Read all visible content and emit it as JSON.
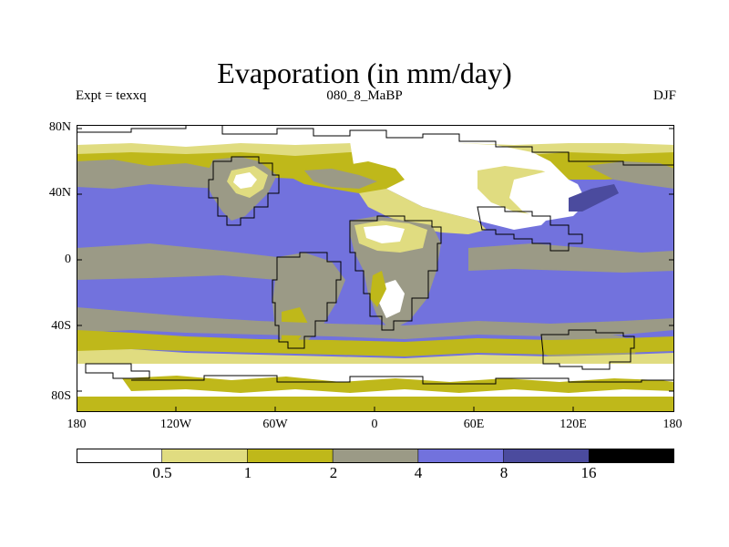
{
  "title": "Evaporation (in mm/day)",
  "subtitle_left": "Expt = texxq",
  "subtitle_center": "080_8_MaBP",
  "subtitle_right": "DJF",
  "lat_labels": [
    "80N",
    "40N",
    "0",
    "40S",
    "80S"
  ],
  "lon_labels": [
    "180",
    "120W",
    "60W",
    "0",
    "60E",
    "120E",
    "180"
  ],
  "colorbar": {
    "labels": [
      "0.5",
      "1",
      "2",
      "4",
      "8",
      "16"
    ],
    "colors": [
      "#ffffff",
      "#e0dc80",
      "#bfb81a",
      "#9b9a86",
      "#7272dd",
      "#4b4b9e",
      "#000000"
    ]
  },
  "legend_colors": {
    "ocean_deep_blue": "#7272dd",
    "dark_blue": "#4b4b9e",
    "gray": "#9b9a86",
    "olive": "#bfb81a",
    "pale_yellow": "#e0dc80",
    "white": "#ffffff"
  }
}
